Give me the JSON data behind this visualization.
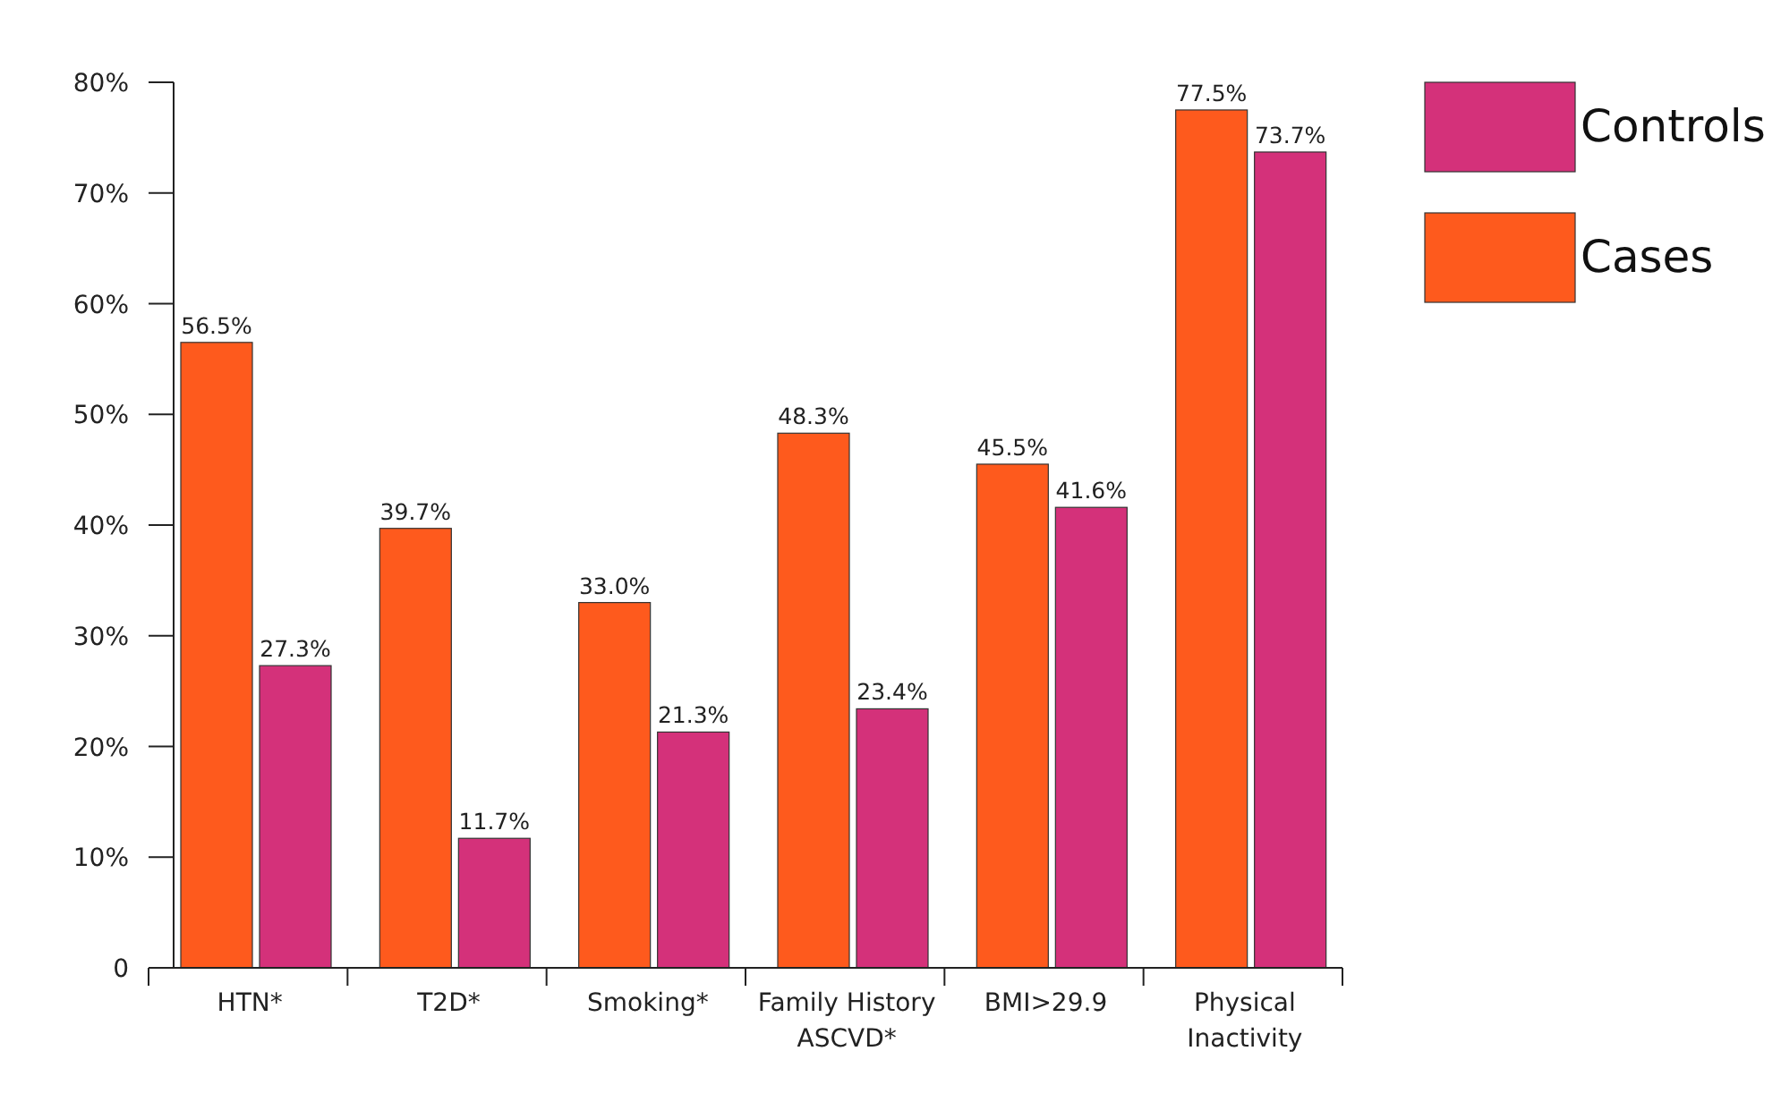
{
  "chart_data": {
    "type": "bar",
    "categories": [
      "HTN*",
      "T2D*",
      "Smoking*",
      "Family History\nASCVD*",
      "BMI>29.9",
      "Physical\nInactivity"
    ],
    "series": [
      {
        "name": "Cases",
        "color": "#fe5a1d",
        "values": [
          56.5,
          39.7,
          33.0,
          48.3,
          45.5,
          77.5
        ],
        "value_labels": [
          "56.5%",
          "39.7%",
          "33.0%",
          "48.3%",
          "45.5%",
          "77.5%"
        ]
      },
      {
        "name": "Controls",
        "color": "#d4317a",
        "values": [
          27.3,
          11.7,
          21.3,
          23.4,
          41.6,
          73.7
        ],
        "value_labels": [
          "27.3%",
          "11.7%",
          "21.3%",
          "23.4%",
          "41.6%",
          "73.7%"
        ]
      }
    ],
    "ylim": [
      0,
      80
    ],
    "yticks": [
      0,
      {
        "value": 10,
        "label": "10%"
      },
      {
        "value": 20,
        "label": "20%"
      },
      {
        "value": 30,
        "label": "30%"
      },
      {
        "value": 40,
        "label": "40%"
      },
      {
        "value": 50,
        "label": "50%"
      },
      {
        "value": 60,
        "label": "60%"
      },
      {
        "value": 70,
        "label": "70%"
      },
      {
        "value": 80,
        "label": "80%"
      }
    ],
    "grid": false,
    "legend": "top right"
  }
}
